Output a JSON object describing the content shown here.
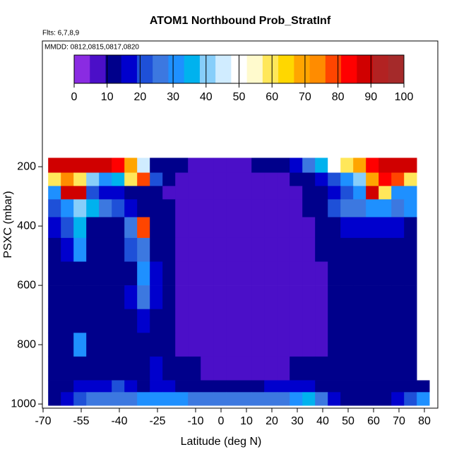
{
  "chart_data": {
    "type": "heatmap",
    "title": "ATOM1 Northbound Prob_StratInf",
    "subtitle": "Flts: 6,7,8,9",
    "annotation": "MMDD: 0812,0815,0817,0820",
    "x_label": "Latitude (deg N)",
    "y_label": "PSXC (mbar)",
    "xlim": [
      -70,
      85
    ],
    "xticks": [
      -70,
      -55,
      -40,
      -25,
      -10,
      0,
      10,
      20,
      30,
      40,
      50,
      60,
      70,
      80
    ],
    "ylim": [
      1014,
      -224
    ],
    "yticks": [
      200,
      400,
      600,
      800,
      1000
    ],
    "colorbar_lim": [
      0,
      100
    ],
    "colorbar_ticks": [
      0,
      10,
      20,
      30,
      40,
      50,
      60,
      70,
      80,
      90,
      100
    ],
    "colormap": [
      "#8a2be2",
      "#4b0fc8",
      "#00008b",
      "#0000cd",
      "#1e50d8",
      "#3c78e0",
      "#1e90ff",
      "#00b2ee",
      "#87cefa",
      "#d0ecff",
      "#ffffff",
      "#fffacd",
      "#ffe75a",
      "#ffd700",
      "#ffa500",
      "#ff8c00",
      "#ff4500",
      "#ff0000",
      "#d00000",
      "#b22222",
      "#a52a2a"
    ],
    "x_edges": [
      -68,
      -63,
      -58,
      -53,
      -48,
      -43,
      -38,
      -33,
      -28,
      -23,
      -18,
      -13,
      -8,
      -3,
      2,
      7,
      12,
      17,
      22,
      27,
      32,
      37,
      42,
      47,
      52,
      57,
      62,
      67,
      72,
      77,
      82
    ],
    "y_edges": [
      170,
      220,
      265,
      310,
      370,
      440,
      520,
      600,
      680,
      760,
      840,
      920,
      960,
      1005
    ],
    "z": [
      [
        88,
        92,
        92,
        90,
        88,
        85,
        70,
        45,
        12,
        10,
        8,
        6,
        5,
        5,
        5,
        6,
        8,
        8,
        10,
        15,
        25,
        35,
        50,
        60,
        72,
        85,
        90,
        92,
        90,
        null
      ],
      [
        60,
        75,
        60,
        40,
        30,
        35,
        60,
        80,
        20,
        10,
        5,
        5,
        5,
        4,
        4,
        4,
        5,
        5,
        5,
        8,
        10,
        15,
        20,
        30,
        40,
        70,
        85,
        80,
        60,
        null
      ],
      [
        30,
        90,
        92,
        20,
        15,
        15,
        12,
        10,
        8,
        5,
        5,
        4,
        4,
        4,
        4,
        4,
        4,
        5,
        5,
        6,
        8,
        10,
        15,
        20,
        30,
        90,
        60,
        30,
        30,
        null
      ],
      [
        20,
        30,
        40,
        35,
        25,
        20,
        15,
        12,
        10,
        8,
        5,
        4,
        4,
        4,
        3,
        3,
        3,
        4,
        5,
        6,
        8,
        10,
        20,
        25,
        25,
        30,
        28,
        25,
        30,
        null
      ],
      [
        15,
        20,
        35,
        12,
        10,
        12,
        25,
        80,
        12,
        8,
        6,
        5,
        4,
        3,
        3,
        3,
        3,
        4,
        4,
        5,
        6,
        8,
        12,
        15,
        15,
        15,
        15,
        15,
        12,
        null
      ],
      [
        12,
        15,
        30,
        12,
        10,
        10,
        20,
        25,
        12,
        8,
        6,
        5,
        4,
        3,
        3,
        3,
        3,
        3,
        4,
        4,
        6,
        8,
        10,
        12,
        12,
        12,
        12,
        12,
        12,
        null
      ],
      [
        10,
        12,
        12,
        10,
        10,
        12,
        12,
        30,
        15,
        10,
        6,
        5,
        4,
        3,
        3,
        3,
        3,
        3,
        4,
        4,
        5,
        6,
        10,
        12,
        12,
        12,
        12,
        12,
        12,
        null
      ],
      [
        10,
        10,
        12,
        10,
        12,
        12,
        15,
        25,
        15,
        10,
        6,
        5,
        4,
        3,
        3,
        3,
        3,
        3,
        3,
        4,
        5,
        6,
        10,
        12,
        12,
        12,
        12,
        12,
        12,
        null
      ],
      [
        10,
        10,
        10,
        10,
        10,
        12,
        12,
        15,
        12,
        10,
        6,
        5,
        4,
        3,
        3,
        3,
        3,
        3,
        3,
        4,
        5,
        6,
        10,
        12,
        12,
        12,
        10,
        10,
        10,
        null
      ],
      [
        10,
        10,
        30,
        10,
        10,
        10,
        10,
        12,
        10,
        8,
        6,
        5,
        4,
        3,
        3,
        3,
        3,
        3,
        3,
        4,
        5,
        6,
        10,
        12,
        12,
        12,
        10,
        10,
        10,
        null
      ],
      [
        10,
        10,
        10,
        10,
        10,
        10,
        12,
        12,
        15,
        12,
        10,
        8,
        6,
        5,
        4,
        4,
        4,
        5,
        6,
        8,
        10,
        10,
        12,
        12,
        12,
        10,
        10,
        10,
        8,
        null
      ],
      [
        10,
        12,
        15,
        15,
        15,
        20,
        15,
        12,
        15,
        15,
        12,
        10,
        8,
        8,
        8,
        10,
        12,
        15,
        15,
        15,
        15,
        12,
        12,
        12,
        10,
        10,
        10,
        10,
        10,
        8
      ],
      [
        12,
        15,
        20,
        25,
        25,
        25,
        25,
        30,
        30,
        30,
        28,
        25,
        25,
        25,
        25,
        25,
        25,
        25,
        25,
        30,
        35,
        25,
        15,
        12,
        12,
        12,
        12,
        15,
        20,
        30
      ]
    ]
  }
}
